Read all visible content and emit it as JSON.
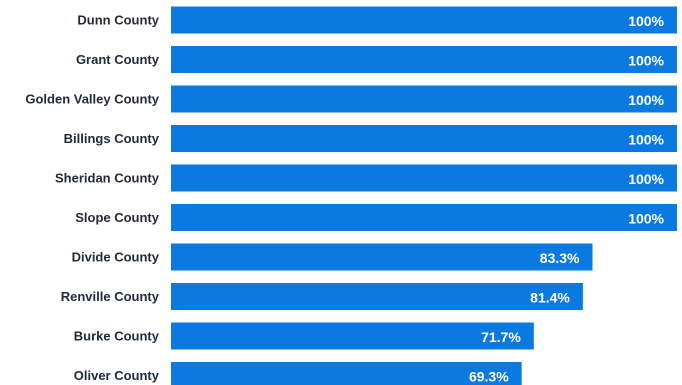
{
  "chart_data": {
    "type": "bar",
    "orientation": "horizontal",
    "categories": [
      "Dunn County",
      "Grant County",
      "Golden Valley County",
      "Billings County",
      "Sheridan County",
      "Slope County",
      "Divide County",
      "Renville County",
      "Burke County",
      "Oliver County"
    ],
    "values": [
      100,
      100,
      100,
      100,
      100,
      100,
      83.3,
      81.4,
      71.7,
      69.3
    ],
    "value_labels": [
      "100%",
      "100%",
      "100%",
      "100%",
      "100%",
      "100%",
      "83.3%",
      "81.4%",
      "71.7%",
      "69.3%"
    ],
    "xlim": [
      0,
      100
    ],
    "grid": false,
    "legend": "none",
    "bar_color": "#0b7ae0",
    "value_label_color": "#ffffff",
    "category_label_color": "#222b3a"
  }
}
